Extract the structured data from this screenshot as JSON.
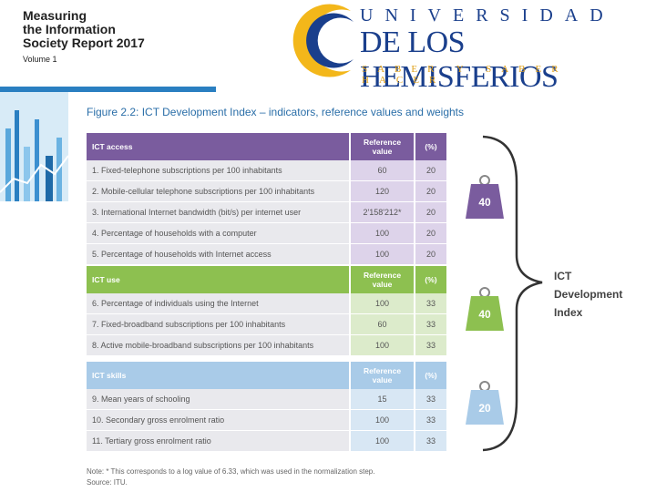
{
  "report": {
    "title": [
      "Measuring",
      "the Information",
      "Society Report 2017"
    ],
    "volume": "Volume 1"
  },
  "logo": {
    "line1": "UNIVERSIDAD",
    "line2": "DE LOS HEMISFERIOS",
    "tagline": "SABER Y SABER HACER"
  },
  "figure": {
    "title": "Figure 2.2: ICT Development Index – indicators, reference values and weights",
    "sections": [
      {
        "name": "ICT access",
        "ref_header": "Reference value",
        "pct_header": "(%)",
        "weight": 40,
        "rows": [
          [
            "1. Fixed-telephone subscriptions per 100 inhabitants",
            60,
            20
          ],
          [
            "2. Mobile-cellular telephone subscriptions per 100 inhabitants",
            120,
            20
          ],
          [
            "3. International Internet bandwidth (bit/s) per internet user",
            "2'158'212*",
            20
          ],
          [
            "4. Percentage of households with a computer",
            100,
            20
          ],
          [
            "5. Percentage of households with Internet access",
            100,
            20
          ]
        ]
      },
      {
        "name": "ICT use",
        "ref_header": "Reference value",
        "pct_header": "(%)",
        "weight": 40,
        "rows": [
          [
            "6. Percentage of individuals using the Internet",
            100,
            33
          ],
          [
            "7. Fixed-broadband subscriptions per 100 inhabitants",
            60,
            33
          ],
          [
            "8. Active mobile-broadband subscriptions per 100 inhabitants",
            100,
            33
          ]
        ]
      },
      {
        "name": "ICT skills",
        "ref_header": "Reference value",
        "pct_header": "(%)",
        "weight": 20,
        "rows": [
          [
            "9.  Mean years of schooling",
            15,
            33
          ],
          [
            "10. Secondary gross enrolment ratio",
            100,
            33
          ],
          [
            "11. Tertiary gross enrolment ratio",
            100,
            33
          ]
        ]
      }
    ],
    "index": [
      "ICT",
      "Development",
      "Index"
    ],
    "note": "Note: * This corresponds to a log value of 6.33, which was used in the normalization step.",
    "source": "Source: ITU."
  }
}
